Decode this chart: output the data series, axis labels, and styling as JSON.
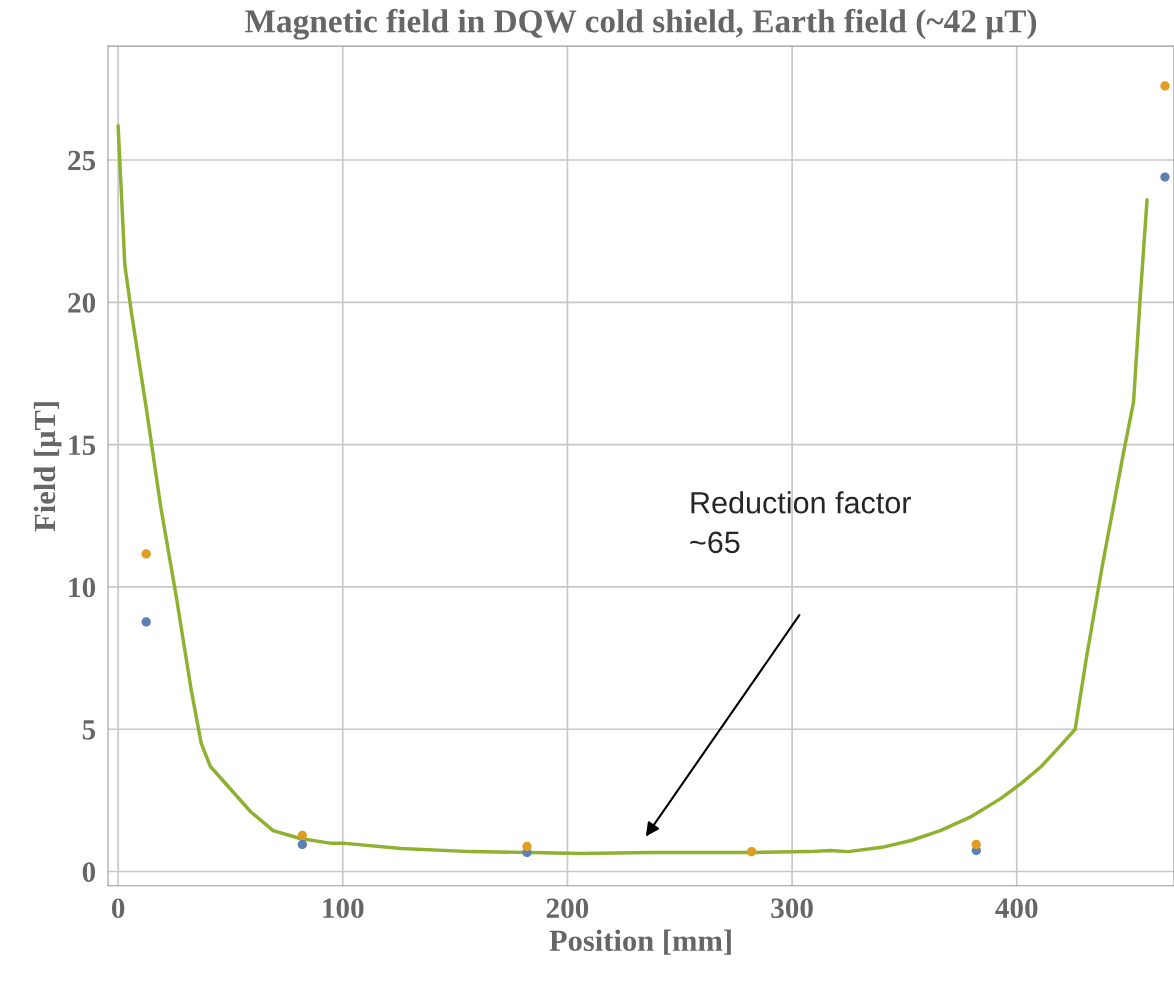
{
  "chart_data": {
    "type": "scatter",
    "title": "Magnetic field in DQW cold shield, Earth field (~42 μT)",
    "xlabel": "Position [mm]",
    "ylabel": "Field [μT]",
    "series": [
      {
        "marker": "circle",
        "color": "#5e81b5",
        "x": [
          12.5,
          82,
          182,
          282,
          382,
          466
        ],
        "values": [
          8.77,
          0.95,
          0.67,
          null,
          0.74,
          24.4
        ]
      },
      {
        "marker": "circle",
        "color": "#e19c24",
        "x": [
          12.5,
          82,
          182,
          282,
          382,
          466
        ],
        "values": [
          11.16,
          1.27,
          0.88,
          0.7,
          0.95,
          27.6
        ]
      },
      {
        "type": "line",
        "color": "#8fb131",
        "x": [
          0,
          3,
          6,
          12.5,
          19,
          26,
          32.5,
          37,
          41,
          50,
          59,
          69,
          81,
          95,
          101,
          126,
          157,
          184,
          206,
          237,
          282,
          308,
          317,
          325,
          340,
          353,
          366,
          380,
          393,
          402,
          411,
          420,
          426,
          431,
          438,
          447,
          452,
          455,
          458
        ],
        "values": [
          26.2,
          21.3,
          19.6,
          16.3,
          12.8,
          9.6,
          6.4,
          4.5,
          3.7,
          2.9,
          2.1,
          1.44,
          1.16,
          0.99,
          0.99,
          0.81,
          0.7,
          0.67,
          0.63,
          0.67,
          0.67,
          0.7,
          0.74,
          0.7,
          0.85,
          1.09,
          1.44,
          1.94,
          2.57,
          3.1,
          3.7,
          4.47,
          5.0,
          7.5,
          10.7,
          14.5,
          16.5,
          20.2,
          23.6
        ]
      }
    ],
    "xlim": [
      -4.5,
      470
    ],
    "ylim": [
      -0.5,
      29
    ],
    "xticks": [
      0,
      100,
      200,
      300,
      400
    ],
    "yticks": [
      0,
      5,
      10,
      15,
      20,
      25
    ],
    "grid": true,
    "annotations": [
      "Reduction factor\n~65"
    ]
  }
}
